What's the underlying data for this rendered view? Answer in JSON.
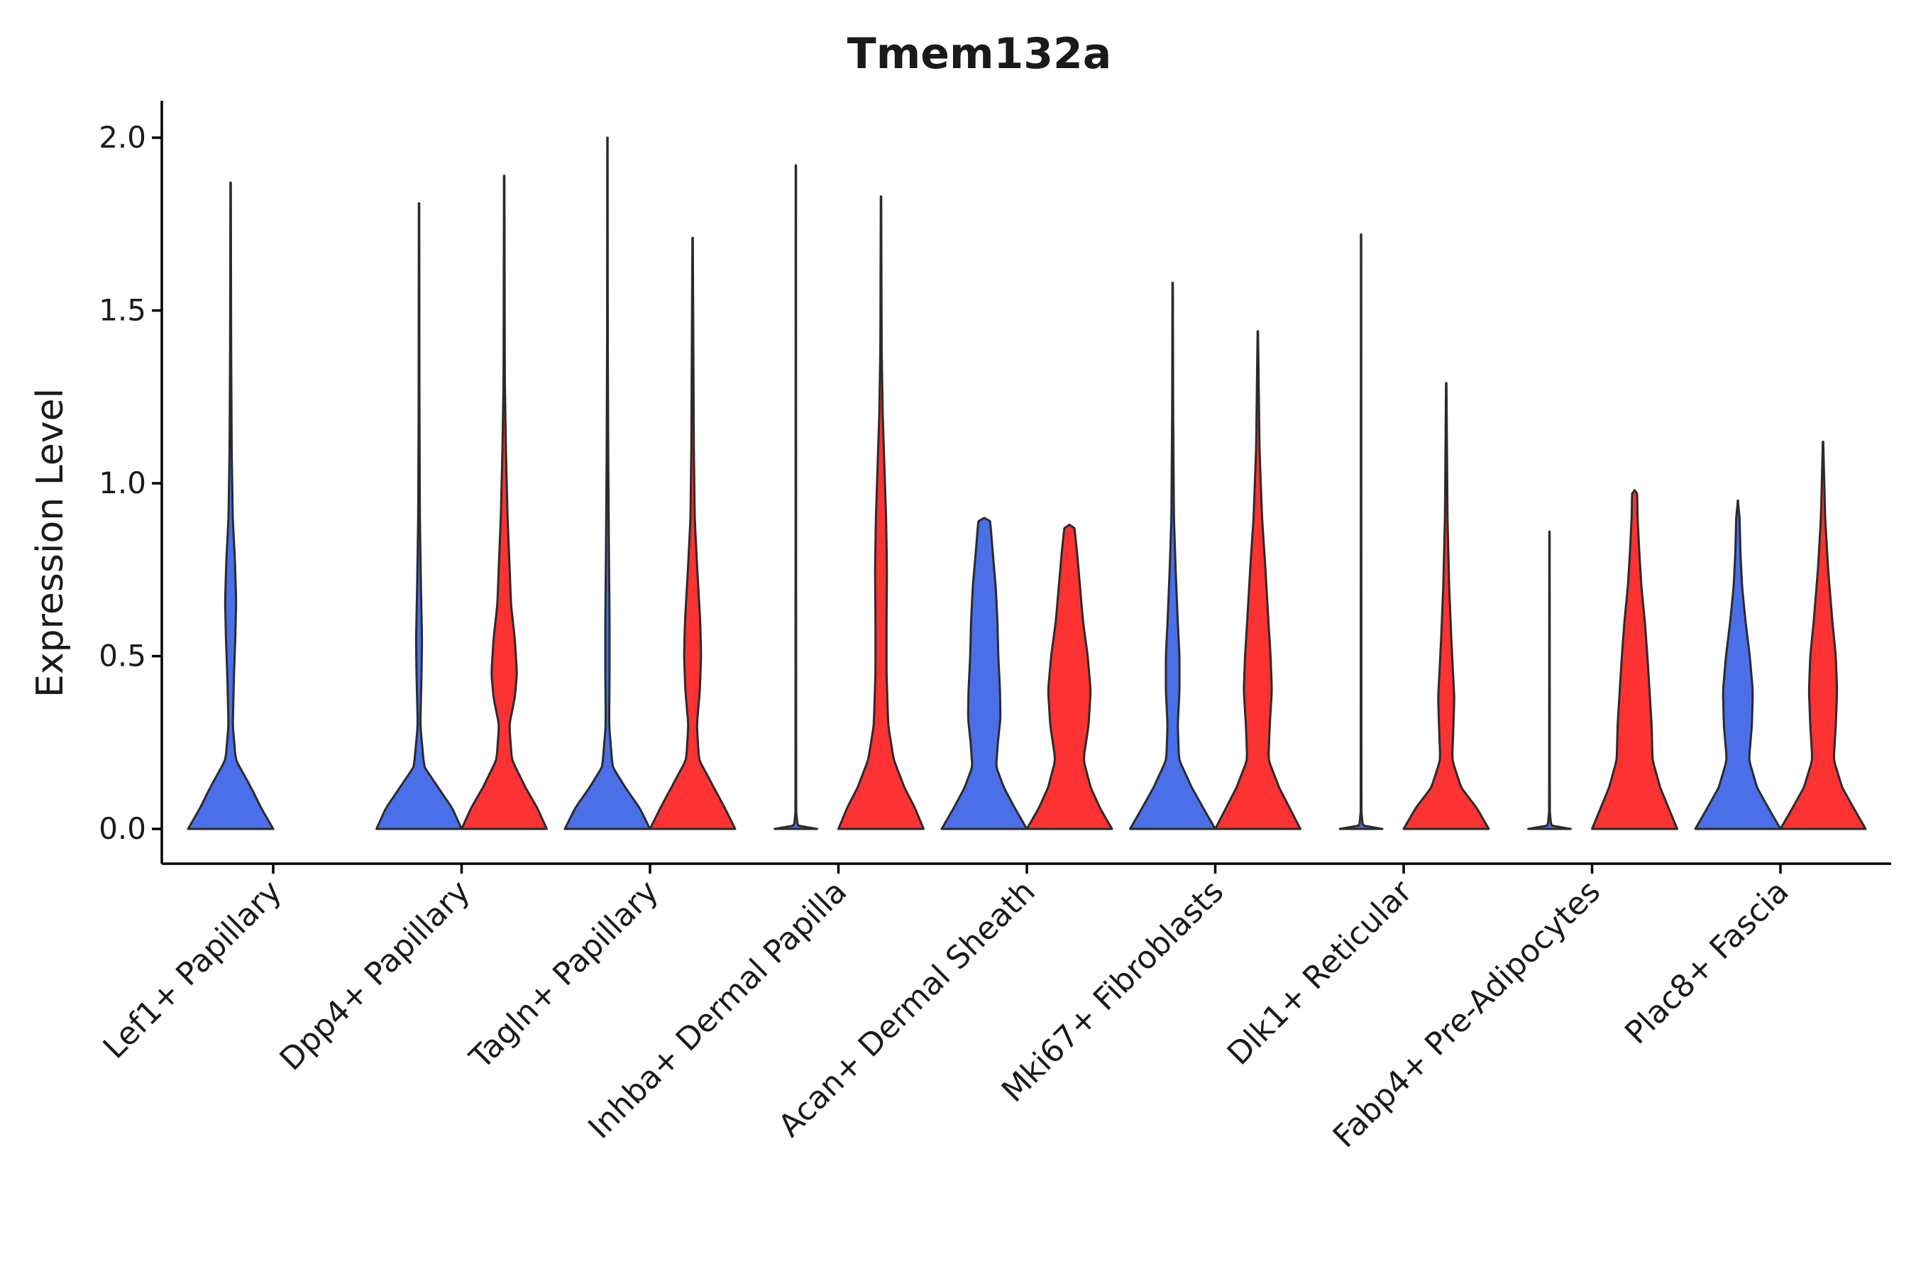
{
  "chart_data": {
    "type": "violin",
    "title": "Tmem132a",
    "xlabel": "",
    "ylabel": "Expression Level",
    "ylim": [
      -0.1,
      2.1
    ],
    "yticks": [
      "0.0",
      "0.5",
      "1.0",
      "1.5",
      "2.0"
    ],
    "ytick_values": [
      0,
      0.5,
      1.0,
      1.5,
      2.0
    ],
    "grid": false,
    "legend": "none",
    "series_colors": [
      "#4a6fe8",
      "#fd3232"
    ],
    "categories": [
      "Lef1+ Papillary",
      "Dpp4+ Papillary",
      "Tagln+ Papillary",
      "Inhba+ Dermal Papilla",
      "Acan+ Dermal Sheath",
      "Mki67+ Fibroblasts",
      "Dlk1+ Reticular",
      "Fabp4+ Pre-Adipocytes",
      "Plac8+ Fascia"
    ],
    "violins": [
      {
        "category": "Lef1+ Papillary",
        "group": 0,
        "max": 1.87,
        "profile": [
          [
            0,
            1.0
          ],
          [
            0.06,
            0.72
          ],
          [
            0.12,
            0.48
          ],
          [
            0.2,
            0.12
          ],
          [
            0.3,
            0.05
          ],
          [
            0.45,
            0.08
          ],
          [
            0.55,
            0.11
          ],
          [
            0.66,
            0.13
          ],
          [
            0.78,
            0.1
          ],
          [
            0.9,
            0.05
          ],
          [
            1.1,
            0.025
          ],
          [
            1.4,
            0.012
          ],
          [
            1.87,
            0.005
          ]
        ]
      },
      {
        "category": "Lef1+ Papillary",
        "group": 1,
        "max": 0.0,
        "profile": []
      },
      {
        "category": "Dpp4+ Papillary",
        "group": 0,
        "max": 1.81,
        "profile": [
          [
            0,
            1.0
          ],
          [
            0.06,
            0.78
          ],
          [
            0.12,
            0.45
          ],
          [
            0.18,
            0.12
          ],
          [
            0.3,
            0.03
          ],
          [
            0.45,
            0.06
          ],
          [
            0.55,
            0.07
          ],
          [
            0.7,
            0.045
          ],
          [
            0.9,
            0.02
          ],
          [
            1.2,
            0.01
          ],
          [
            1.81,
            0.005
          ]
        ]
      },
      {
        "category": "Dpp4+ Papillary",
        "group": 1,
        "max": 1.89,
        "profile": [
          [
            0,
            1.0
          ],
          [
            0.06,
            0.78
          ],
          [
            0.12,
            0.5
          ],
          [
            0.2,
            0.18
          ],
          [
            0.3,
            0.12
          ],
          [
            0.38,
            0.25
          ],
          [
            0.45,
            0.3
          ],
          [
            0.55,
            0.25
          ],
          [
            0.65,
            0.16
          ],
          [
            0.78,
            0.12
          ],
          [
            0.9,
            0.08
          ],
          [
            1.1,
            0.04
          ],
          [
            1.3,
            0.015
          ],
          [
            1.89,
            0.005
          ]
        ]
      },
      {
        "category": "Tagln+ Papillary",
        "group": 0,
        "max": 2.0,
        "profile": [
          [
            0,
            1.0
          ],
          [
            0.06,
            0.76
          ],
          [
            0.12,
            0.42
          ],
          [
            0.18,
            0.12
          ],
          [
            0.3,
            0.04
          ],
          [
            0.45,
            0.05
          ],
          [
            0.6,
            0.05
          ],
          [
            0.8,
            0.035
          ],
          [
            1.05,
            0.02
          ],
          [
            1.4,
            0.008
          ],
          [
            2.0,
            0.004
          ]
        ]
      },
      {
        "category": "Tagln+ Papillary",
        "group": 1,
        "max": 1.71,
        "profile": [
          [
            0,
            1.0
          ],
          [
            0.06,
            0.76
          ],
          [
            0.12,
            0.5
          ],
          [
            0.2,
            0.15
          ],
          [
            0.3,
            0.1
          ],
          [
            0.4,
            0.17
          ],
          [
            0.5,
            0.2
          ],
          [
            0.6,
            0.18
          ],
          [
            0.75,
            0.11
          ],
          [
            0.9,
            0.05
          ],
          [
            1.1,
            0.03
          ],
          [
            1.71,
            0.005
          ]
        ]
      },
      {
        "category": "Inhba+ Dermal Papilla",
        "group": 0,
        "max": 1.92,
        "profile": [
          [
            0,
            0.5
          ],
          [
            0.01,
            0.04
          ],
          [
            0.05,
            0.008
          ],
          [
            1.92,
            0.004
          ]
        ]
      },
      {
        "category": "Inhba+ Dermal Papilla",
        "group": 1,
        "max": 1.83,
        "profile": [
          [
            0,
            1.0
          ],
          [
            0.06,
            0.8
          ],
          [
            0.12,
            0.55
          ],
          [
            0.2,
            0.3
          ],
          [
            0.3,
            0.17
          ],
          [
            0.45,
            0.13
          ],
          [
            0.6,
            0.13
          ],
          [
            0.75,
            0.14
          ],
          [
            0.9,
            0.12
          ],
          [
            1.05,
            0.08
          ],
          [
            1.2,
            0.04
          ],
          [
            1.4,
            0.015
          ],
          [
            1.83,
            0.005
          ]
        ]
      },
      {
        "category": "Acan+ Dermal Sheath",
        "group": 0,
        "max": 0.9,
        "profile": [
          [
            0,
            1.0
          ],
          [
            0.06,
            0.72
          ],
          [
            0.12,
            0.46
          ],
          [
            0.18,
            0.28
          ],
          [
            0.25,
            0.32
          ],
          [
            0.32,
            0.38
          ],
          [
            0.4,
            0.37
          ],
          [
            0.5,
            0.33
          ],
          [
            0.6,
            0.31
          ],
          [
            0.7,
            0.27
          ],
          [
            0.8,
            0.2
          ],
          [
            0.89,
            0.14
          ],
          [
            0.9,
            0.0
          ]
        ]
      },
      {
        "category": "Acan+ Dermal Sheath",
        "group": 1,
        "max": 0.88,
        "profile": [
          [
            0,
            1.0
          ],
          [
            0.06,
            0.72
          ],
          [
            0.12,
            0.5
          ],
          [
            0.2,
            0.33
          ],
          [
            0.3,
            0.45
          ],
          [
            0.4,
            0.5
          ],
          [
            0.5,
            0.43
          ],
          [
            0.6,
            0.32
          ],
          [
            0.7,
            0.25
          ],
          [
            0.8,
            0.18
          ],
          [
            0.87,
            0.12
          ],
          [
            0.88,
            0.0
          ]
        ]
      },
      {
        "category": "Mki67+ Fibroblasts",
        "group": 0,
        "max": 1.58,
        "profile": [
          [
            0,
            1.0
          ],
          [
            0.06,
            0.72
          ],
          [
            0.12,
            0.45
          ],
          [
            0.2,
            0.15
          ],
          [
            0.3,
            0.12
          ],
          [
            0.4,
            0.16
          ],
          [
            0.5,
            0.16
          ],
          [
            0.6,
            0.12
          ],
          [
            0.75,
            0.07
          ],
          [
            0.9,
            0.03
          ],
          [
            1.2,
            0.012
          ],
          [
            1.58,
            0.005
          ]
        ]
      },
      {
        "category": "Mki67+ Fibroblasts",
        "group": 1,
        "max": 1.44,
        "profile": [
          [
            0,
            1.0
          ],
          [
            0.06,
            0.75
          ],
          [
            0.12,
            0.5
          ],
          [
            0.2,
            0.25
          ],
          [
            0.3,
            0.28
          ],
          [
            0.4,
            0.33
          ],
          [
            0.5,
            0.3
          ],
          [
            0.6,
            0.25
          ],
          [
            0.75,
            0.18
          ],
          [
            0.9,
            0.1
          ],
          [
            1.1,
            0.04
          ],
          [
            1.44,
            0.005
          ]
        ]
      },
      {
        "category": "Dlk1+ Reticular",
        "group": 0,
        "max": 1.72,
        "profile": [
          [
            0,
            0.5
          ],
          [
            0.01,
            0.04
          ],
          [
            0.05,
            0.008
          ],
          [
            1.72,
            0.004
          ]
        ]
      },
      {
        "category": "Dlk1+ Reticular",
        "group": 1,
        "max": 1.29,
        "profile": [
          [
            0,
            1.0
          ],
          [
            0.06,
            0.72
          ],
          [
            0.12,
            0.35
          ],
          [
            0.2,
            0.14
          ],
          [
            0.3,
            0.17
          ],
          [
            0.38,
            0.19
          ],
          [
            0.45,
            0.16
          ],
          [
            0.55,
            0.12
          ],
          [
            0.7,
            0.07
          ],
          [
            0.9,
            0.03
          ],
          [
            1.29,
            0.005
          ]
        ]
      },
      {
        "category": "Fabp4+ Pre-Adipocytes",
        "group": 0,
        "max": 0.86,
        "profile": [
          [
            0,
            0.5
          ],
          [
            0.01,
            0.04
          ],
          [
            0.05,
            0.008
          ],
          [
            0.86,
            0.004
          ]
        ]
      },
      {
        "category": "Fabp4+ Pre-Adipocytes",
        "group": 1,
        "max": 0.98,
        "profile": [
          [
            0,
            1.0
          ],
          [
            0.06,
            0.8
          ],
          [
            0.12,
            0.6
          ],
          [
            0.2,
            0.42
          ],
          [
            0.3,
            0.4
          ],
          [
            0.4,
            0.35
          ],
          [
            0.5,
            0.3
          ],
          [
            0.6,
            0.24
          ],
          [
            0.7,
            0.16
          ],
          [
            0.8,
            0.11
          ],
          [
            0.9,
            0.07
          ],
          [
            0.97,
            0.06
          ],
          [
            0.98,
            0.0
          ]
        ]
      },
      {
        "category": "Plac8+ Fascia",
        "group": 0,
        "max": 0.95,
        "profile": [
          [
            0,
            1.0
          ],
          [
            0.06,
            0.72
          ],
          [
            0.12,
            0.45
          ],
          [
            0.2,
            0.26
          ],
          [
            0.3,
            0.33
          ],
          [
            0.4,
            0.35
          ],
          [
            0.5,
            0.28
          ],
          [
            0.6,
            0.18
          ],
          [
            0.7,
            0.1
          ],
          [
            0.8,
            0.06
          ],
          [
            0.9,
            0.04
          ],
          [
            0.95,
            0.0
          ]
        ]
      },
      {
        "category": "Plac8+ Fascia",
        "group": 1,
        "max": 1.12,
        "profile": [
          [
            0,
            1.0
          ],
          [
            0.06,
            0.72
          ],
          [
            0.12,
            0.45
          ],
          [
            0.2,
            0.25
          ],
          [
            0.3,
            0.3
          ],
          [
            0.4,
            0.33
          ],
          [
            0.5,
            0.3
          ],
          [
            0.6,
            0.22
          ],
          [
            0.75,
            0.12
          ],
          [
            0.9,
            0.05
          ],
          [
            1.12,
            0.005
          ]
        ]
      }
    ]
  }
}
